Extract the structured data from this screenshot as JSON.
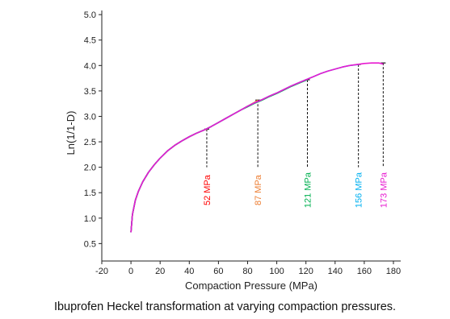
{
  "caption": "Ibuprofen Heckel transformation at varying compaction pressures.",
  "chart_data": {
    "type": "line",
    "title": "",
    "xlabel": "Compaction Pressure (MPa)",
    "ylabel": "Ln(1/1-D)",
    "xlim": [
      -20,
      185
    ],
    "ylim": [
      0.3,
      5.05
    ],
    "xticks": [
      -20,
      0,
      20,
      40,
      60,
      80,
      100,
      120,
      140,
      160,
      180
    ],
    "yticks": [
      0.5,
      1.0,
      1.5,
      2.0,
      2.5,
      3.0,
      3.5,
      4.0,
      4.5,
      5.0
    ],
    "xtick_labels": [
      "-20",
      "0",
      "20",
      "40",
      "60",
      "80",
      "100",
      "120",
      "140",
      "160",
      "180"
    ],
    "ytick_labels": [
      "0.5",
      "1.0",
      "1.5",
      "2.0",
      "2.5",
      "3.0",
      "3.5",
      "4.0",
      "4.5",
      "5.0"
    ],
    "grid": false,
    "series": [
      {
        "color": "#ff0000",
        "x": [
          0,
          1,
          3,
          5,
          8,
          12,
          16,
          20,
          25,
          30,
          35,
          40,
          45,
          50,
          52
        ],
        "y": [
          0.72,
          1.07,
          1.35,
          1.52,
          1.71,
          1.9,
          2.05,
          2.18,
          2.32,
          2.43,
          2.52,
          2.6,
          2.67,
          2.73,
          2.75
        ]
      },
      {
        "color": "#ed7d31",
        "x": [
          0,
          1,
          3,
          5,
          8,
          12,
          16,
          20,
          25,
          30,
          35,
          40,
          45,
          50,
          55,
          60,
          65,
          70,
          75,
          80,
          85,
          87
        ],
        "y": [
          0.72,
          1.07,
          1.35,
          1.52,
          1.71,
          1.9,
          2.05,
          2.18,
          2.32,
          2.43,
          2.52,
          2.6,
          2.67,
          2.73,
          2.8,
          2.88,
          2.96,
          3.04,
          3.12,
          3.2,
          3.28,
          3.32
        ]
      },
      {
        "color": "#00b050",
        "x": [
          0,
          1,
          3,
          5,
          8,
          12,
          16,
          20,
          25,
          30,
          35,
          40,
          45,
          50,
          55,
          60,
          65,
          70,
          75,
          80,
          85,
          90,
          95,
          100,
          105,
          110,
          115,
          121
        ],
        "y": [
          0.72,
          1.07,
          1.35,
          1.52,
          1.71,
          1.9,
          2.05,
          2.18,
          2.32,
          2.43,
          2.52,
          2.6,
          2.67,
          2.73,
          2.8,
          2.88,
          2.96,
          3.04,
          3.12,
          3.19,
          3.26,
          3.32,
          3.39,
          3.45,
          3.52,
          3.59,
          3.65,
          3.72
        ]
      },
      {
        "color": "#00b0f0",
        "x": [
          0,
          1,
          3,
          5,
          8,
          12,
          16,
          20,
          25,
          30,
          35,
          40,
          45,
          50,
          55,
          60,
          65,
          70,
          75,
          80,
          85,
          90,
          95,
          100,
          105,
          110,
          115,
          120,
          125,
          130,
          135,
          140,
          145,
          150,
          156
        ],
        "y": [
          0.72,
          1.07,
          1.35,
          1.52,
          1.71,
          1.9,
          2.05,
          2.18,
          2.32,
          2.43,
          2.52,
          2.6,
          2.67,
          2.73,
          2.8,
          2.88,
          2.96,
          3.04,
          3.12,
          3.2,
          3.27,
          3.33,
          3.4,
          3.46,
          3.53,
          3.6,
          3.66,
          3.72,
          3.78,
          3.84,
          3.89,
          3.93,
          3.97,
          4.0,
          4.02
        ]
      },
      {
        "color": "#e81ad0",
        "x": [
          0,
          1,
          3,
          5,
          8,
          12,
          16,
          20,
          25,
          30,
          35,
          40,
          45,
          50,
          55,
          60,
          65,
          70,
          75,
          80,
          85,
          90,
          95,
          100,
          105,
          110,
          115,
          120,
          125,
          130,
          135,
          140,
          145,
          150,
          155,
          160,
          165,
          170,
          173
        ],
        "y": [
          0.72,
          1.07,
          1.35,
          1.52,
          1.71,
          1.9,
          2.05,
          2.18,
          2.32,
          2.43,
          2.52,
          2.6,
          2.67,
          2.73,
          2.8,
          2.88,
          2.96,
          3.04,
          3.12,
          3.2,
          3.27,
          3.33,
          3.4,
          3.46,
          3.53,
          3.6,
          3.66,
          3.72,
          3.78,
          3.84,
          3.89,
          3.93,
          3.97,
          4.0,
          4.02,
          4.04,
          4.05,
          4.05,
          4.03
        ]
      }
    ],
    "annotations": [
      {
        "text": "52 MPa",
        "x": 52,
        "y_top": 2.75,
        "color": "#ff0000"
      },
      {
        "text": "87 MPa",
        "x": 87,
        "y_top": 3.32,
        "color": "#ed7d31"
      },
      {
        "text": "121 MPa",
        "x": 121,
        "y_top": 3.72,
        "color": "#00b050"
      },
      {
        "text": "156 MPa",
        "x": 156,
        "y_top": 4.02,
        "color": "#00b0f0"
      },
      {
        "text": "173 MPa",
        "x": 173,
        "y_top": 4.05,
        "color": "#e81ad0"
      }
    ]
  }
}
